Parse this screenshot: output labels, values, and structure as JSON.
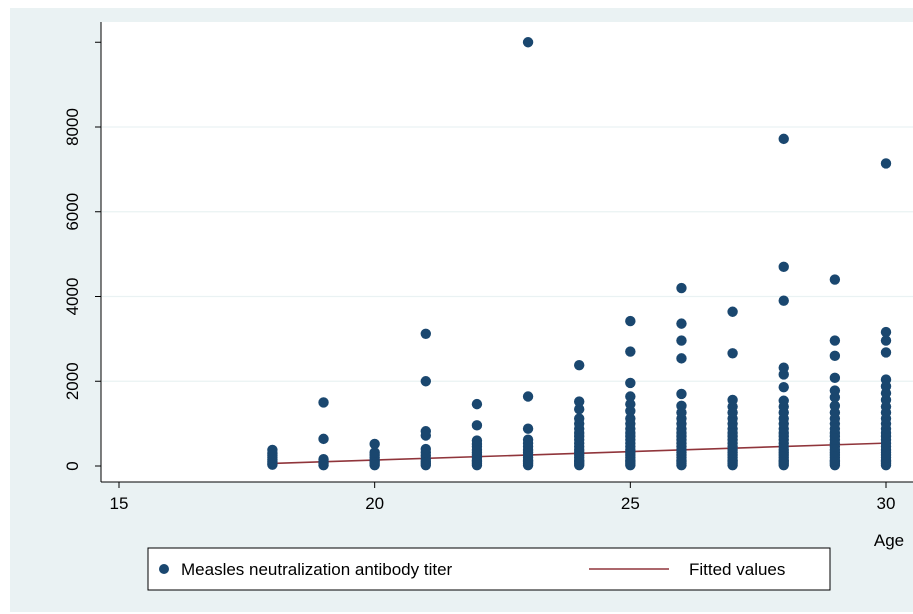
{
  "colors": {
    "outer_background": "#eaf2f3",
    "plot_background": "#ffffff",
    "gridline": "#eaf2f3",
    "marker": "#1a476f",
    "fit_line": "#90353b"
  },
  "chart_data": {
    "type": "scatter",
    "xlabel": "Age",
    "ylabel": "",
    "xlim": [
      14.5,
      30.5
    ],
    "ylim": [
      -500,
      10000
    ],
    "x_ticks": [
      "15",
      "20",
      "25",
      "30"
    ],
    "y_ticks": [
      "0",
      "2000",
      "4000",
      "6000",
      "8000"
    ],
    "grid": true,
    "legend_position": "bottom",
    "series": [
      {
        "name": "Measles neutralization antibody titer",
        "kind": "scatter",
        "points": [
          [
            18,
            30
          ],
          [
            18,
            60
          ],
          [
            18,
            100
          ],
          [
            18,
            150
          ],
          [
            18,
            200
          ],
          [
            18,
            250
          ],
          [
            18,
            300
          ],
          [
            18,
            380
          ],
          [
            19,
            20
          ],
          [
            19,
            60
          ],
          [
            19,
            100
          ],
          [
            19,
            160
          ],
          [
            19,
            640
          ],
          [
            19,
            1500
          ],
          [
            20,
            20
          ],
          [
            20,
            60
          ],
          [
            20,
            100
          ],
          [
            20,
            140
          ],
          [
            20,
            200
          ],
          [
            20,
            260
          ],
          [
            20,
            320
          ],
          [
            20,
            520
          ],
          [
            21,
            20
          ],
          [
            21,
            60
          ],
          [
            21,
            100
          ],
          [
            21,
            160
          ],
          [
            21,
            240
          ],
          [
            21,
            320
          ],
          [
            21,
            400
          ],
          [
            21,
            720
          ],
          [
            21,
            820
          ],
          [
            21,
            2000
          ],
          [
            21,
            3120
          ],
          [
            22,
            20
          ],
          [
            22,
            60
          ],
          [
            22,
            100
          ],
          [
            22,
            140
          ],
          [
            22,
            200
          ],
          [
            22,
            260
          ],
          [
            22,
            320
          ],
          [
            22,
            380
          ],
          [
            22,
            460
          ],
          [
            22,
            520
          ],
          [
            22,
            600
          ],
          [
            22,
            960
          ],
          [
            22,
            1460
          ],
          [
            23,
            20
          ],
          [
            23,
            60
          ],
          [
            23,
            100
          ],
          [
            23,
            140
          ],
          [
            23,
            200
          ],
          [
            23,
            260
          ],
          [
            23,
            320
          ],
          [
            23,
            380
          ],
          [
            23,
            460
          ],
          [
            23,
            540
          ],
          [
            23,
            620
          ],
          [
            23,
            880
          ],
          [
            23,
            1640
          ],
          [
            23,
            10000
          ],
          [
            24,
            20
          ],
          [
            24,
            60
          ],
          [
            24,
            100
          ],
          [
            24,
            140
          ],
          [
            24,
            200
          ],
          [
            24,
            260
          ],
          [
            24,
            320
          ],
          [
            24,
            380
          ],
          [
            24,
            460
          ],
          [
            24,
            540
          ],
          [
            24,
            620
          ],
          [
            24,
            700
          ],
          [
            24,
            780
          ],
          [
            24,
            880
          ],
          [
            24,
            1000
          ],
          [
            24,
            1120
          ],
          [
            24,
            1340
          ],
          [
            24,
            1520
          ],
          [
            24,
            2380
          ],
          [
            25,
            20
          ],
          [
            25,
            60
          ],
          [
            25,
            100
          ],
          [
            25,
            140
          ],
          [
            25,
            200
          ],
          [
            25,
            260
          ],
          [
            25,
            320
          ],
          [
            25,
            380
          ],
          [
            25,
            460
          ],
          [
            25,
            540
          ],
          [
            25,
            620
          ],
          [
            25,
            700
          ],
          [
            25,
            780
          ],
          [
            25,
            880
          ],
          [
            25,
            1000
          ],
          [
            25,
            1120
          ],
          [
            25,
            1300
          ],
          [
            25,
            1460
          ],
          [
            25,
            1640
          ],
          [
            25,
            1960
          ],
          [
            25,
            2700
          ],
          [
            25,
            3420
          ],
          [
            26,
            20
          ],
          [
            26,
            60
          ],
          [
            26,
            100
          ],
          [
            26,
            140
          ],
          [
            26,
            200
          ],
          [
            26,
            260
          ],
          [
            26,
            320
          ],
          [
            26,
            380
          ],
          [
            26,
            460
          ],
          [
            26,
            540
          ],
          [
            26,
            620
          ],
          [
            26,
            700
          ],
          [
            26,
            780
          ],
          [
            26,
            880
          ],
          [
            26,
            1000
          ],
          [
            26,
            1120
          ],
          [
            26,
            1260
          ],
          [
            26,
            1420
          ],
          [
            26,
            1700
          ],
          [
            26,
            2540
          ],
          [
            26,
            2960
          ],
          [
            26,
            3360
          ],
          [
            26,
            4200
          ],
          [
            27,
            20
          ],
          [
            27,
            60
          ],
          [
            27,
            100
          ],
          [
            27,
            140
          ],
          [
            27,
            200
          ],
          [
            27,
            260
          ],
          [
            27,
            320
          ],
          [
            27,
            380
          ],
          [
            27,
            460
          ],
          [
            27,
            540
          ],
          [
            27,
            620
          ],
          [
            27,
            700
          ],
          [
            27,
            780
          ],
          [
            27,
            880
          ],
          [
            27,
            1000
          ],
          [
            27,
            1120
          ],
          [
            27,
            1260
          ],
          [
            27,
            1400
          ],
          [
            27,
            1560
          ],
          [
            27,
            2660
          ],
          [
            27,
            3640
          ],
          [
            28,
            20
          ],
          [
            28,
            60
          ],
          [
            28,
            100
          ],
          [
            28,
            140
          ],
          [
            28,
            200
          ],
          [
            28,
            260
          ],
          [
            28,
            320
          ],
          [
            28,
            380
          ],
          [
            28,
            460
          ],
          [
            28,
            540
          ],
          [
            28,
            620
          ],
          [
            28,
            700
          ],
          [
            28,
            780
          ],
          [
            28,
            880
          ],
          [
            28,
            1000
          ],
          [
            28,
            1120
          ],
          [
            28,
            1260
          ],
          [
            28,
            1400
          ],
          [
            28,
            1540
          ],
          [
            28,
            1860
          ],
          [
            28,
            2160
          ],
          [
            28,
            2320
          ],
          [
            28,
            3900
          ],
          [
            28,
            4700
          ],
          [
            28,
            7720
          ],
          [
            29,
            20
          ],
          [
            29,
            60
          ],
          [
            29,
            100
          ],
          [
            29,
            140
          ],
          [
            29,
            200
          ],
          [
            29,
            260
          ],
          [
            29,
            320
          ],
          [
            29,
            380
          ],
          [
            29,
            460
          ],
          [
            29,
            540
          ],
          [
            29,
            620
          ],
          [
            29,
            700
          ],
          [
            29,
            780
          ],
          [
            29,
            880
          ],
          [
            29,
            1000
          ],
          [
            29,
            1120
          ],
          [
            29,
            1260
          ],
          [
            29,
            1420
          ],
          [
            29,
            1620
          ],
          [
            29,
            1780
          ],
          [
            29,
            2080
          ],
          [
            29,
            2600
          ],
          [
            29,
            2960
          ],
          [
            29,
            4400
          ],
          [
            30,
            20
          ],
          [
            30,
            60
          ],
          [
            30,
            100
          ],
          [
            30,
            140
          ],
          [
            30,
            200
          ],
          [
            30,
            260
          ],
          [
            30,
            320
          ],
          [
            30,
            380
          ],
          [
            30,
            460
          ],
          [
            30,
            540
          ],
          [
            30,
            620
          ],
          [
            30,
            700
          ],
          [
            30,
            780
          ],
          [
            30,
            880
          ],
          [
            30,
            1000
          ],
          [
            30,
            1120
          ],
          [
            30,
            1260
          ],
          [
            30,
            1400
          ],
          [
            30,
            1560
          ],
          [
            30,
            1720
          ],
          [
            30,
            1880
          ],
          [
            30,
            2040
          ],
          [
            30,
            2680
          ],
          [
            30,
            2960
          ],
          [
            30,
            3160
          ],
          [
            30,
            7140
          ]
        ]
      },
      {
        "name": "Fitted values",
        "kind": "line",
        "points": [
          [
            18,
            60
          ],
          [
            30,
            540
          ]
        ]
      }
    ]
  }
}
